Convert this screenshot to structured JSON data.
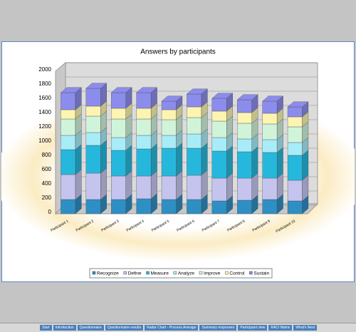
{
  "chart_data": {
    "type": "bar3d_stacked",
    "title": "Answers by participants",
    "categories": [
      "Participant 1",
      "Participant 2",
      "Participant 3",
      "Participant 4",
      "Participant 5",
      "Participant 6",
      "Participant 7",
      "Participant 8",
      "Participant 9",
      "Participant 10"
    ],
    "series": [
      {
        "name": "Recognize",
        "color": "#2e8fc4",
        "values": [
          200,
          200,
          200,
          210,
          200,
          200,
          180,
          190,
          200,
          180
        ]
      },
      {
        "name": "Define",
        "color": "#c4c4ee",
        "values": [
          350,
          370,
          330,
          320,
          330,
          340,
          320,
          310,
          300,
          290
        ]
      },
      {
        "name": "Measure",
        "color": "#26b8dc",
        "values": [
          350,
          390,
          360,
          380,
          390,
          380,
          380,
          370,
          360,
          350
        ]
      },
      {
        "name": "Analyze",
        "color": "#a8ecf8",
        "values": [
          200,
          180,
          180,
          190,
          180,
          200,
          190,
          180,
          180,
          180
        ]
      },
      {
        "name": "Improve",
        "color": "#d0f4da",
        "values": [
          230,
          230,
          260,
          230,
          220,
          230,
          230,
          220,
          220,
          220
        ]
      },
      {
        "name": "Control",
        "color": "#fcf4b0",
        "values": [
          130,
          140,
          150,
          150,
          140,
          150,
          140,
          150,
          150,
          140
        ]
      },
      {
        "name": "Sustain",
        "color": "#8c8cec",
        "values": [
          240,
          250,
          220,
          220,
          120,
          180,
          180,
          180,
          170,
          140
        ]
      }
    ],
    "ylim": [
      0,
      2000
    ],
    "yticks": [
      0,
      200,
      400,
      600,
      800,
      1000,
      1200,
      1400,
      1600,
      1800,
      2000
    ],
    "grid": true,
    "legend": "bottom"
  },
  "tabs": [
    "Start",
    "Introduction",
    "Questionnaire",
    "Questionnaire results",
    "Radar Chart - Process Average",
    "Summary responses",
    "Participant view",
    "RACI Matrix",
    "What's Next"
  ]
}
